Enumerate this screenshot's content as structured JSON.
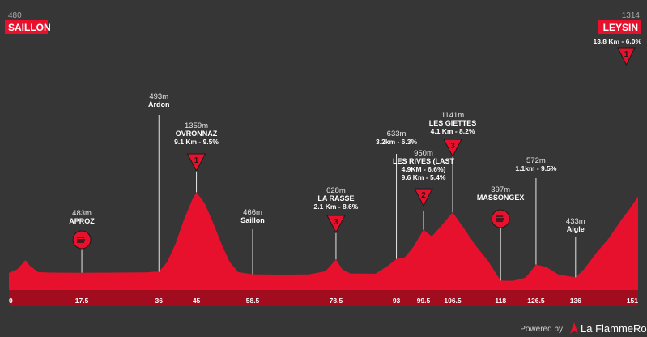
{
  "chart_data": {
    "type": "area",
    "title": "",
    "xlabel": "",
    "ylabel": "",
    "accent_color": "#e8112d",
    "background_color": "#363636",
    "xlim": [
      0,
      151
    ],
    "x_ticks": [
      {
        "x": 0,
        "label": "0"
      },
      {
        "x": 17.5,
        "label": "17.5"
      },
      {
        "x": 36,
        "label": "36"
      },
      {
        "x": 45,
        "label": "45"
      },
      {
        "x": 58.5,
        "label": "58.5"
      },
      {
        "x": 78.5,
        "label": "78.5"
      },
      {
        "x": 93,
        "label": "93"
      },
      {
        "x": 99.5,
        "label": "99.5"
      },
      {
        "x": 106.5,
        "label": "106.5"
      },
      {
        "x": 118,
        "label": "118"
      },
      {
        "x": 126.5,
        "label": "126.5"
      },
      {
        "x": 136,
        "label": "136"
      },
      {
        "x": 151,
        "label": "151"
      }
    ],
    "profile": [
      {
        "x": 0,
        "y": 480
      },
      {
        "x": 2,
        "y": 520
      },
      {
        "x": 4,
        "y": 620
      },
      {
        "x": 5,
        "y": 560
      },
      {
        "x": 7,
        "y": 490
      },
      {
        "x": 10,
        "y": 484
      },
      {
        "x": 17.5,
        "y": 483
      },
      {
        "x": 25,
        "y": 484
      },
      {
        "x": 33,
        "y": 486
      },
      {
        "x": 35,
        "y": 495
      },
      {
        "x": 36,
        "y": 493
      },
      {
        "x": 38,
        "y": 600
      },
      {
        "x": 40,
        "y": 800
      },
      {
        "x": 42,
        "y": 1060
      },
      {
        "x": 44,
        "y": 1280
      },
      {
        "x": 45,
        "y": 1359
      },
      {
        "x": 47,
        "y": 1240
      },
      {
        "x": 49,
        "y": 1030
      },
      {
        "x": 51,
        "y": 800
      },
      {
        "x": 53,
        "y": 600
      },
      {
        "x": 55,
        "y": 490
      },
      {
        "x": 58.5,
        "y": 466
      },
      {
        "x": 65,
        "y": 462
      },
      {
        "x": 72,
        "y": 465
      },
      {
        "x": 76,
        "y": 500
      },
      {
        "x": 78.5,
        "y": 628
      },
      {
        "x": 80,
        "y": 520
      },
      {
        "x": 82,
        "y": 475
      },
      {
        "x": 88,
        "y": 472
      },
      {
        "x": 91,
        "y": 560
      },
      {
        "x": 93,
        "y": 633
      },
      {
        "x": 95,
        "y": 650
      },
      {
        "x": 97,
        "y": 760
      },
      {
        "x": 99.5,
        "y": 950
      },
      {
        "x": 101.5,
        "y": 880
      },
      {
        "x": 103.5,
        "y": 980
      },
      {
        "x": 106.5,
        "y": 1141
      },
      {
        "x": 109,
        "y": 980
      },
      {
        "x": 112,
        "y": 780
      },
      {
        "x": 115,
        "y": 610
      },
      {
        "x": 118,
        "y": 397
      },
      {
        "x": 121,
        "y": 395
      },
      {
        "x": 124,
        "y": 430
      },
      {
        "x": 126.5,
        "y": 572
      },
      {
        "x": 129,
        "y": 545
      },
      {
        "x": 132,
        "y": 460
      },
      {
        "x": 136,
        "y": 433
      },
      {
        "x": 138,
        "y": 520
      },
      {
        "x": 141,
        "y": 700
      },
      {
        "x": 144,
        "y": 860
      },
      {
        "x": 147,
        "y": 1060
      },
      {
        "x": 149,
        "y": 1180
      },
      {
        "x": 151,
        "y": 1314
      }
    ],
    "start": {
      "name": "SAILLON",
      "elevation": "480"
    },
    "finish": {
      "name": "LEYSIN",
      "elevation": "1314",
      "climb": "13.8 Km - 6.0%",
      "category": "1"
    },
    "points": [
      {
        "x": 17.5,
        "elevation": 483,
        "alt_label": "483m",
        "name": "APROZ",
        "detail": "",
        "marker": "sprint"
      },
      {
        "x": 36,
        "elevation": 493,
        "alt_label": "493m",
        "name": "Ardon",
        "detail": "",
        "marker": "none"
      },
      {
        "x": 45,
        "elevation": 1359,
        "alt_label": "1359m",
        "name": "OVRONNAZ",
        "detail": "9.1 Km - 9.5%",
        "marker": "climb",
        "category": "1"
      },
      {
        "x": 58.5,
        "elevation": 466,
        "alt_label": "466m",
        "name": "Saillon",
        "detail": "",
        "marker": "none"
      },
      {
        "x": 78.5,
        "elevation": 628,
        "alt_label": "628m",
        "name": "LA RASSE",
        "detail": "2.1 Km - 8.6%",
        "marker": "climb",
        "category": "3"
      },
      {
        "x": 93,
        "elevation": 633,
        "alt_label": "633m",
        "name": "",
        "detail": "3.2km - 6.3%",
        "marker": "none"
      },
      {
        "x": 99.5,
        "elevation": 950,
        "alt_label": "950m",
        "name": "LES RIVES (LAST",
        "detail": "4.9KM - 6.6%)",
        "detail2": "9.6 Km - 5.4%",
        "marker": "climb",
        "category": "2"
      },
      {
        "x": 106.5,
        "elevation": 1141,
        "alt_label": "1141m",
        "name": "LES GIETTES",
        "detail": "4.1 Km - 8.2%",
        "marker": "climb",
        "category": "3"
      },
      {
        "x": 118,
        "elevation": 397,
        "alt_label": "397m",
        "name": "MASSONGEX",
        "detail": "",
        "marker": "sprint"
      },
      {
        "x": 126.5,
        "elevation": 572,
        "alt_label": "572m",
        "name": "",
        "detail": "1.1km - 9.5%",
        "marker": "none"
      },
      {
        "x": 136,
        "elevation": 433,
        "alt_label": "433m",
        "name": "Aigle",
        "detail": "",
        "marker": "none"
      }
    ]
  },
  "footer": {
    "powered_label": "Powered by",
    "brand": "La FlammeRouge"
  }
}
